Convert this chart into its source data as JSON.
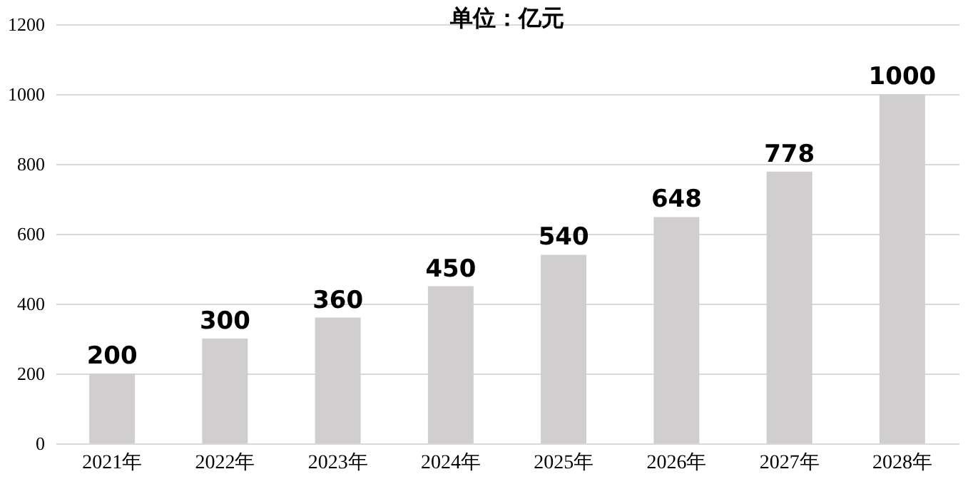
{
  "chart_data": {
    "type": "bar",
    "title": "单位：亿元",
    "categories": [
      "2021年",
      "2022年",
      "2023年",
      "2024年",
      "2025年",
      "2026年",
      "2027年",
      "2028年"
    ],
    "values": [
      200,
      300,
      360,
      450,
      540,
      648,
      778,
      1000
    ],
    "color": "#d0cece",
    "ylim": [
      0,
      1200
    ],
    "yticks": [
      0,
      200,
      400,
      600,
      800,
      1000,
      1200
    ],
    "grid": "y",
    "data_labels": true
  }
}
